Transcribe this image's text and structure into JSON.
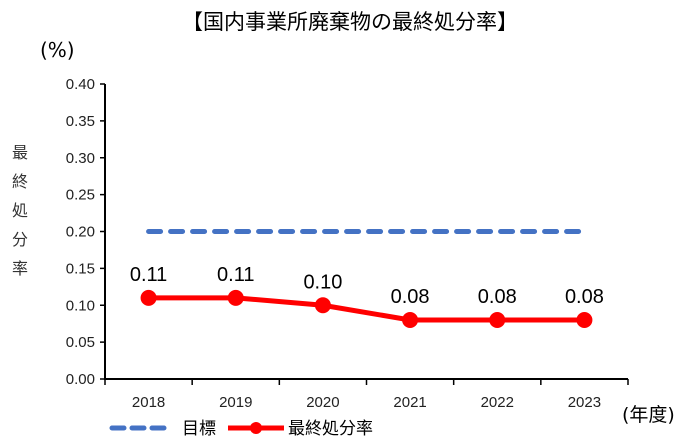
{
  "chart_data": {
    "type": "line",
    "title": "【国内事業所廃棄物の最終処分率】",
    "ylabel": "最終処分率",
    "yunit": "(%)",
    "xlabel": "(年度)",
    "categories": [
      "2018",
      "2019",
      "2020",
      "2021",
      "2022",
      "2023"
    ],
    "series": [
      {
        "name": "目標",
        "values": [
          0.2,
          0.2,
          0.2,
          0.2,
          0.2,
          0.2
        ],
        "color": "#4472C4",
        "style": "dashed"
      },
      {
        "name": "最終処分率",
        "values": [
          0.11,
          0.11,
          0.1,
          0.08,
          0.08,
          0.08
        ],
        "color": "#FF0000",
        "style": "solid-marker",
        "data_labels": [
          "0.11",
          "0.11",
          "0.10",
          "0.08",
          "0.08",
          "0.08"
        ]
      }
    ],
    "ylim": [
      0,
      0.4
    ],
    "yticks": [
      "0.00",
      "0.05",
      "0.10",
      "0.15",
      "0.20",
      "0.25",
      "0.30",
      "0.35",
      "0.40"
    ],
    "grid": false,
    "legend_position": "bottom"
  }
}
